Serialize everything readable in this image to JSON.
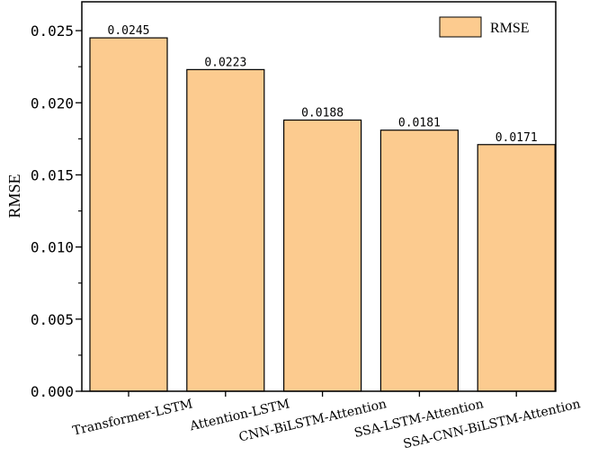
{
  "chart_data": {
    "type": "bar",
    "categories": [
      "Transformer-LSTM",
      "Attention-LSTM",
      "CNN-BiLSTM-Attention",
      "SSA-LSTM-Attention",
      "SSA-CNN-BiLSTM-Attention"
    ],
    "series": [
      {
        "name": "RMSE",
        "values": [
          0.0245,
          0.0223,
          0.0188,
          0.0181,
          0.0171
        ],
        "color": "#FCCB8F"
      }
    ],
    "data_labels": [
      "0.0245",
      "0.0223",
      "0.0188",
      "0.0181",
      "0.0171"
    ],
    "title": "",
    "xlabel": "",
    "ylabel": "RMSE",
    "ylim": [
      0,
      0.027
    ],
    "yticks": [
      "0.000",
      "0.005",
      "0.010",
      "0.015",
      "0.020",
      "0.025"
    ],
    "legend_position": "top-right",
    "grid": false,
    "bar_edge_color": "#000000"
  }
}
